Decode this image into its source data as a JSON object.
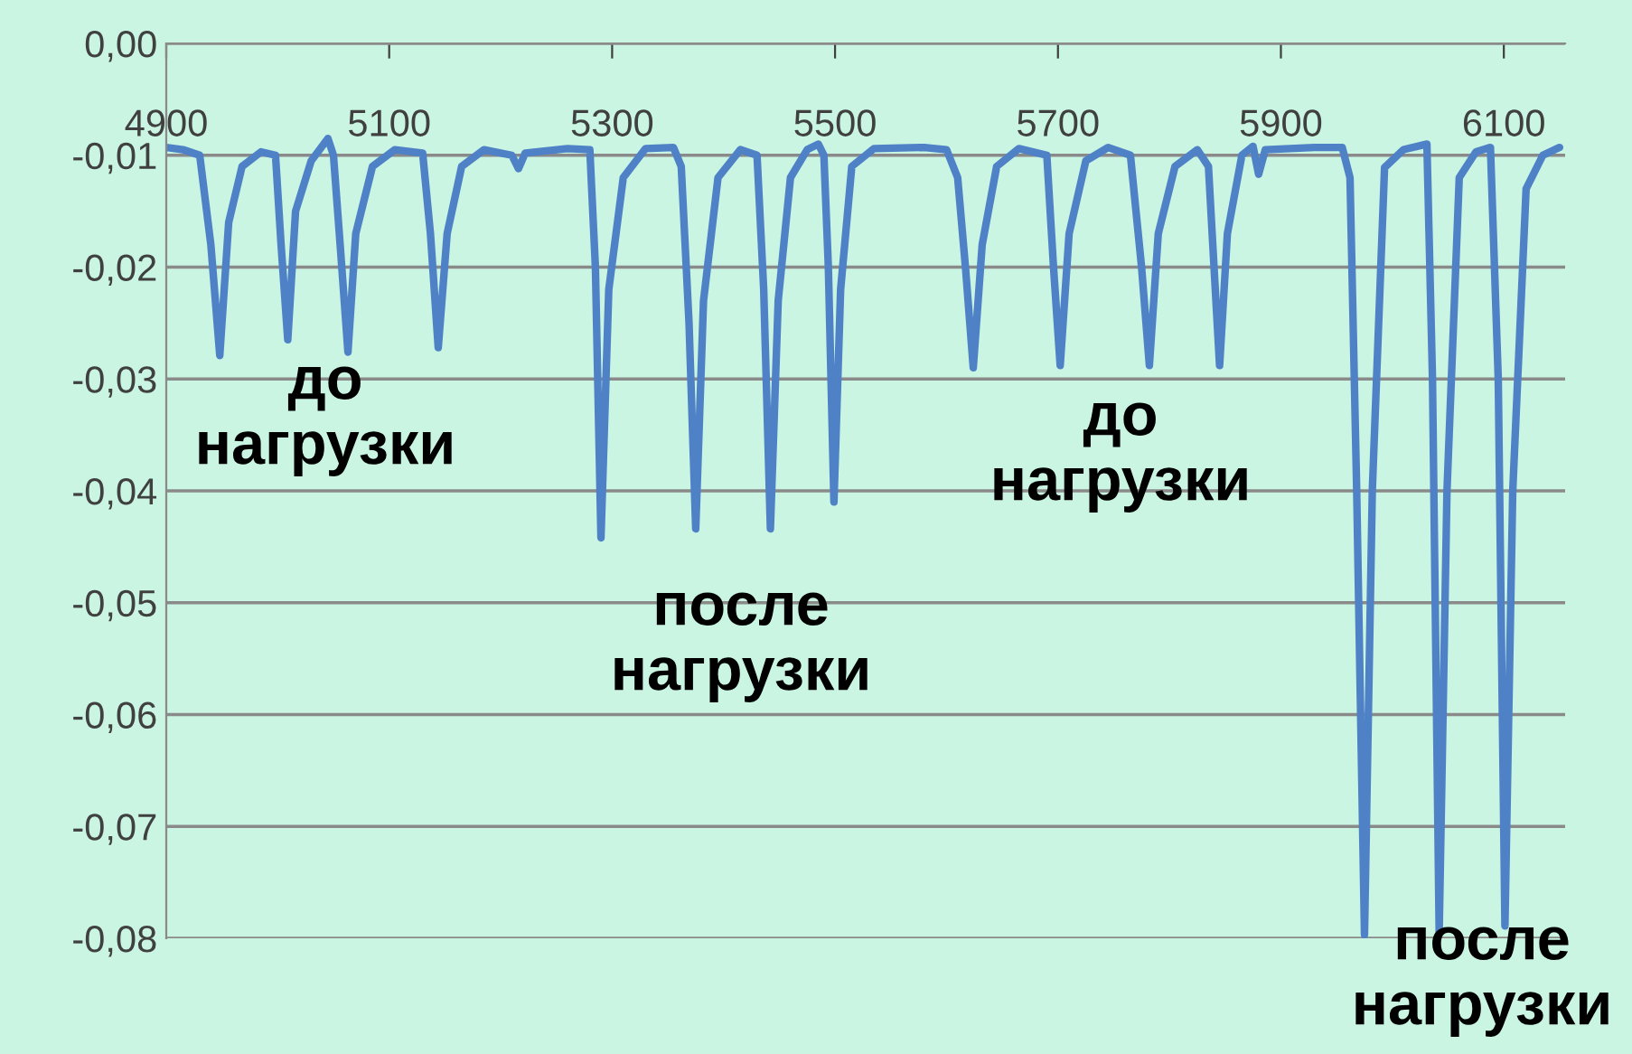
{
  "chart_data": {
    "type": "line",
    "x": [
      4900,
      4915,
      4930,
      4940,
      4948,
      4956,
      4968,
      4985,
      4998,
      5003,
      5009,
      5016,
      5030,
      5045,
      5050,
      5056,
      5063,
      5070,
      5085,
      5105,
      5130,
      5137,
      5144,
      5152,
      5165,
      5185,
      5210,
      5216,
      5222,
      5260,
      5280,
      5285,
      5290,
      5297,
      5310,
      5330,
      5355,
      5362,
      5369,
      5375,
      5382,
      5395,
      5415,
      5430,
      5436,
      5442,
      5449,
      5460,
      5475,
      5485,
      5490,
      5494,
      5499,
      5505,
      5515,
      5535,
      5580,
      5600,
      5610,
      5617,
      5624,
      5632,
      5645,
      5665,
      5690,
      5696,
      5702,
      5710,
      5725,
      5745,
      5765,
      5775,
      5782,
      5790,
      5805,
      5825,
      5835,
      5840,
      5845,
      5852,
      5865,
      5875,
      5880,
      5886,
      5930,
      5955,
      5962,
      5968,
      5975,
      5982,
      5993,
      6010,
      6031,
      6036,
      6042,
      6049,
      6060,
      6075,
      6088,
      6095,
      6101,
      6108,
      6120,
      6135,
      6150
    ],
    "series": [
      {
        "color": "#4f81c7",
        "values": [
          -0.0093,
          -0.0095,
          -0.01,
          -0.018,
          -0.0279,
          -0.016,
          -0.011,
          -0.0097,
          -0.01,
          -0.018,
          -0.0265,
          -0.015,
          -0.0105,
          -0.0085,
          -0.01,
          -0.018,
          -0.0276,
          -0.017,
          -0.011,
          -0.0095,
          -0.0098,
          -0.017,
          -0.0272,
          -0.017,
          -0.011,
          -0.0095,
          -0.01,
          -0.0112,
          -0.0098,
          -0.0094,
          -0.0095,
          -0.02,
          -0.0442,
          -0.022,
          -0.012,
          -0.0094,
          -0.0093,
          -0.011,
          -0.025,
          -0.0434,
          -0.023,
          -0.012,
          -0.0095,
          -0.01,
          -0.022,
          -0.0434,
          -0.023,
          -0.012,
          -0.0095,
          -0.009,
          -0.01,
          -0.02,
          -0.041,
          -0.022,
          -0.011,
          -0.0094,
          -0.0093,
          -0.0095,
          -0.012,
          -0.02,
          -0.029,
          -0.018,
          -0.011,
          -0.0094,
          -0.01,
          -0.02,
          -0.0288,
          -0.017,
          -0.0105,
          -0.0093,
          -0.01,
          -0.02,
          -0.0288,
          -0.017,
          -0.011,
          -0.0095,
          -0.011,
          -0.02,
          -0.0288,
          -0.017,
          -0.01,
          -0.0092,
          -0.0117,
          -0.0095,
          -0.0093,
          -0.0093,
          -0.012,
          -0.04,
          -0.0797,
          -0.04,
          -0.0111,
          -0.0095,
          -0.009,
          -0.03,
          -0.0795,
          -0.04,
          -0.012,
          -0.0097,
          -0.0093,
          -0.03,
          -0.0789,
          -0.04,
          -0.013,
          -0.01,
          -0.0093
        ]
      }
    ],
    "xlim": [
      4900,
      6155
    ],
    "xticks": [
      4900,
      5100,
      5300,
      5500,
      5700,
      5900,
      6100
    ],
    "ylim": [
      -0.08,
      0
    ],
    "yticks": [
      {
        "value": 0,
        "label": "0,00"
      },
      {
        "value": -0.01,
        "label": "-0,01"
      },
      {
        "value": -0.02,
        "label": "-0,02"
      },
      {
        "value": -0.03,
        "label": "-0,03"
      },
      {
        "value": -0.04,
        "label": "-0,04"
      },
      {
        "value": -0.05,
        "label": "-0,05"
      },
      {
        "value": -0.06,
        "label": "-0,06"
      },
      {
        "value": -0.07,
        "label": "-0,07"
      },
      {
        "value": -0.08,
        "label": "-0,08"
      }
    ],
    "grid": "y",
    "line_style": "solid",
    "marker": "none",
    "annotations": [
      "до\nнагрузки",
      "после\nнагрузки",
      "до\nнагрузки",
      "после\nнагрузки"
    ]
  }
}
